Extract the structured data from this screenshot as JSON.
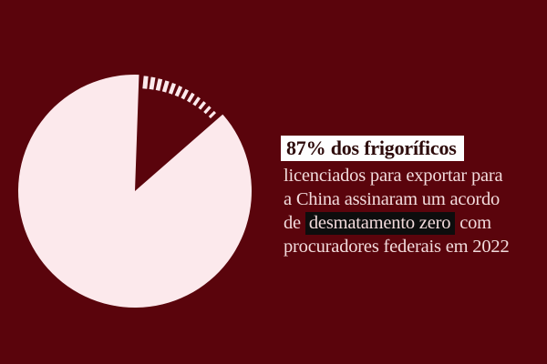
{
  "colors": {
    "background": "#5a040c",
    "pie_fill": "#fce9ec",
    "body_text": "#f2dbdc",
    "highlight_bg": "#fefefe",
    "highlight_text": "#2d0a0a",
    "dark_highlight_bg": "#0d0d0d"
  },
  "chart_data": {
    "type": "pie",
    "title": "",
    "values": [
      87,
      13
    ],
    "unit": "%",
    "highlighted_value_label": "87%",
    "legend": "none",
    "gap_start_deg": 2,
    "gap_tick_count": 12,
    "layout": "pie left, caption right, gap slice drawn as background with hatch ticks along missing arc"
  },
  "caption": {
    "headline": "87% dos frigoríficos",
    "line2": "licenciados para exportar para",
    "line3": "a China assinaram um acordo",
    "line4_pre": "de ",
    "line4_highlight": "desmatamento zero",
    "line4_post": " com",
    "line5": "procuradores federais em 2022"
  }
}
